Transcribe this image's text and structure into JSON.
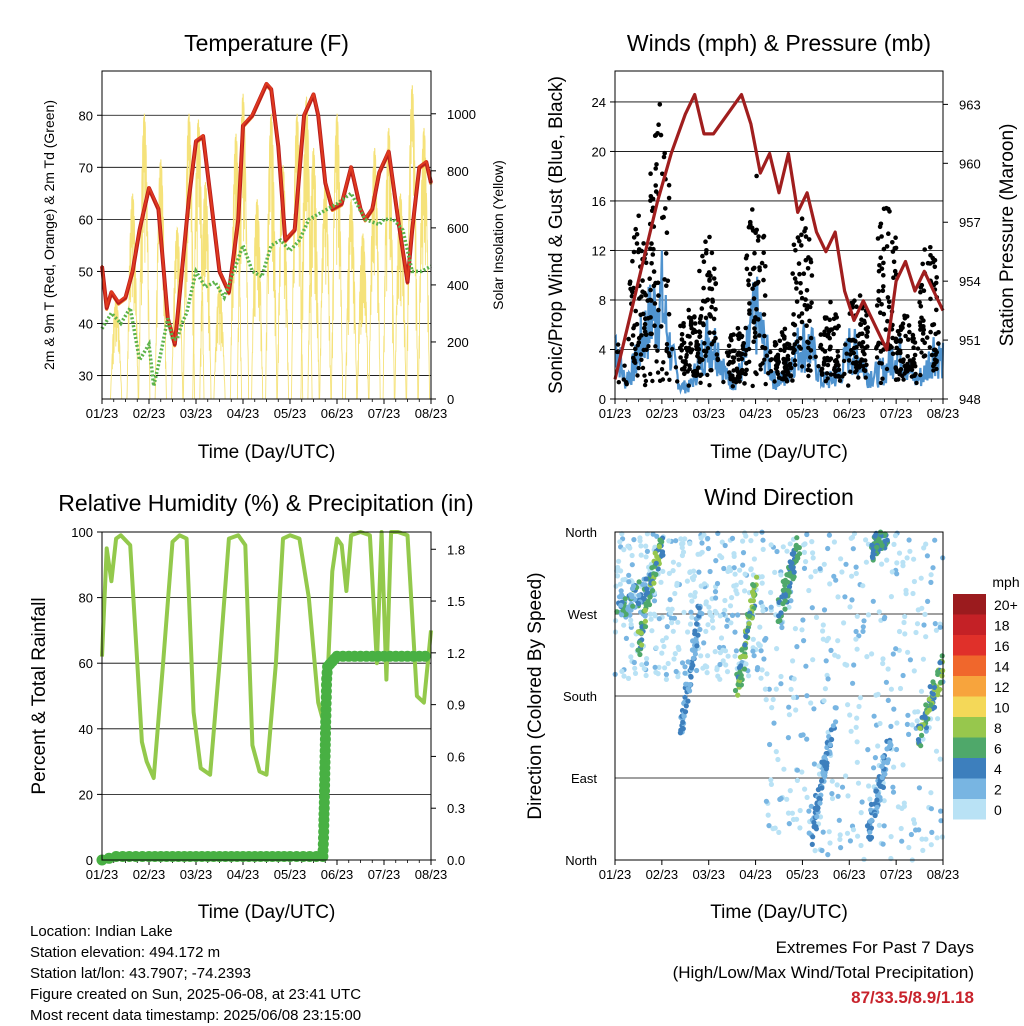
{
  "colors": {
    "temp_2m": "#e03a1e",
    "temp_9m": "#b81e1e",
    "temp_2m_alt": "#f28a2a",
    "dewpoint": "#5cb34a",
    "insolation": "#f5e27a",
    "gust": "#000000",
    "wind": "#4f93cf",
    "pressure": "#a01e1e",
    "rh": "#93c94c",
    "precip": "#48b043"
  },
  "footer": {
    "location": "Location: Indian Lake",
    "elevation": "Station elevation: 494.172 m",
    "latlon": "Station lat/lon: 43.7907; -74.2393",
    "created": "Figure created on Sun, 2025-06-08, at 23:41 UTC",
    "recent": "Most recent data timestamp: 2025/06/08 23:15:00"
  },
  "extremes": {
    "title": "Extremes For Past 7 Days",
    "subtitle": "(High/Low/Max Wind/Total Precipitation)",
    "values": "87/33.5/8.9/1.18"
  },
  "chart_data": [
    {
      "type": "line",
      "title": "Temperature (F)",
      "xlabel": "Time (Day/UTC)",
      "ylabel": "2m & 9m T (Red, Orange) & 2m Td (Green)",
      "y2label": "Solar Insolation (Yellow)",
      "x_ticks": [
        "01/23",
        "02/23",
        "03/23",
        "04/23",
        "05/23",
        "06/23",
        "07/23",
        "08/23"
      ],
      "ylim": [
        25.5,
        88.5
      ],
      "y_ticks": [
        30,
        40,
        50,
        60,
        70,
        80
      ],
      "y2lim": [
        0,
        1150
      ],
      "y2_ticks": [
        0,
        200,
        400,
        600,
        800,
        1000
      ],
      "grid": true,
      "series": [
        {
          "name": "2m T",
          "axis": "left",
          "color_key": "temp_2m",
          "x": [
            0,
            0.1,
            0.2,
            0.35,
            0.5,
            0.65,
            0.8,
            1.0,
            1.2,
            1.4,
            1.55,
            1.7,
            1.85,
            2.0,
            2.15,
            2.3,
            2.5,
            2.7,
            2.9,
            3.0,
            3.2,
            3.5,
            3.6,
            3.75,
            3.9,
            4.1,
            4.3,
            4.5,
            4.6,
            4.75,
            4.9,
            5.1,
            5.3,
            5.5,
            5.6,
            5.75,
            5.9,
            6.1,
            6.3,
            6.5,
            6.6,
            6.75,
            6.9,
            7.0
          ],
          "values": [
            51,
            43,
            46,
            44,
            45,
            50,
            58,
            66,
            62,
            41,
            36,
            50,
            64,
            75,
            76,
            65,
            50,
            46,
            60,
            78,
            80,
            86,
            85,
            74,
            56,
            58,
            80,
            84,
            80,
            67,
            62,
            63,
            70,
            62,
            60,
            62,
            69,
            73,
            60,
            48,
            58,
            70,
            71,
            67
          ]
        },
        {
          "name": "2m Td",
          "axis": "left",
          "color_key": "dewpoint",
          "x": [
            0,
            0.2,
            0.4,
            0.6,
            0.8,
            1.0,
            1.1,
            1.2,
            1.4,
            1.5,
            1.6,
            1.7,
            1.8,
            2.0,
            2.2,
            2.4,
            2.6,
            2.8,
            3.0,
            3.2,
            3.4,
            3.6,
            3.8,
            4.0,
            4.2,
            4.4,
            4.6,
            4.8,
            5.0,
            5.3,
            5.6,
            5.9,
            6.0,
            6.2,
            6.4,
            6.6,
            6.8,
            7.0
          ],
          "values": [
            39,
            42,
            40,
            43,
            33,
            36,
            28,
            32,
            41,
            37,
            37,
            40,
            42,
            50,
            47,
            48,
            45,
            50,
            55,
            50,
            49,
            55,
            56,
            54,
            56,
            60,
            61,
            62,
            63,
            65,
            60,
            59,
            60,
            60,
            58,
            50,
            50,
            51
          ]
        }
      ],
      "insolation_peaks": [
        0.3,
        0.65,
        0.9,
        1.25,
        1.6,
        1.85,
        2.05,
        2.2,
        2.5,
        2.85,
        3.0,
        3.3,
        3.6,
        3.85,
        4.15,
        4.35,
        4.5,
        4.75,
        5.0,
        5.3,
        5.55,
        5.8,
        6.1,
        6.35,
        6.6,
        6.85
      ],
      "insolation_values": [
        350,
        720,
        1000,
        840,
        600,
        1000,
        980,
        760,
        400,
        930,
        1070,
        700,
        1000,
        820,
        1000,
        1060,
        880,
        760,
        1000,
        700,
        580,
        880,
        950,
        720,
        1100,
        950
      ]
    },
    {
      "type": "line",
      "title": "Winds (mph) & Pressure (mb)",
      "xlabel": "Time (Day/UTC)",
      "ylabel": "Sonic/Prop Wind & Gust (Blue, Black)",
      "y2label": "Station Pressure (Maroon)",
      "x_ticks": [
        "01/23",
        "02/23",
        "03/23",
        "04/23",
        "05/23",
        "06/23",
        "07/23",
        "08/23"
      ],
      "ylim": [
        0,
        26.5
      ],
      "y_ticks": [
        0,
        4,
        8,
        12,
        16,
        20,
        24
      ],
      "y2lim": [
        948,
        964.7
      ],
      "y2_ticks": [
        948,
        951,
        954,
        957,
        960,
        963
      ],
      "grid": true,
      "series": [
        {
          "name": "Pressure",
          "axis": "right",
          "color_key": "pressure",
          "x": [
            0,
            0.3,
            0.6,
            0.9,
            1.2,
            1.5,
            1.7,
            1.9,
            2.1,
            2.4,
            2.7,
            2.9,
            3.1,
            3.3,
            3.5,
            3.7,
            3.9,
            4.1,
            4.3,
            4.5,
            4.7,
            4.9,
            5.1,
            5.3,
            5.6,
            5.8,
            6.0,
            6.2,
            6.4,
            6.6,
            6.8,
            7.0
          ],
          "values": [
            949,
            952,
            955,
            958,
            960.5,
            962.5,
            963.5,
            961.5,
            961.5,
            962.5,
            963.5,
            962,
            959.5,
            960.5,
            958.5,
            960.5,
            957.5,
            958.5,
            956.5,
            955.5,
            956.5,
            953.5,
            952,
            953,
            951.5,
            950.5,
            954,
            955,
            953.5,
            954.5,
            953.5,
            952.5
          ]
        },
        {
          "name": "Wind",
          "axis": "left",
          "color_key": "wind",
          "x": [
            0,
            0.2,
            0.4,
            0.6,
            0.8,
            1.0,
            1.2,
            1.4,
            1.6,
            1.8,
            2.0,
            2.2,
            2.4,
            2.6,
            2.8,
            3.0,
            3.2,
            3.4,
            3.6,
            3.8,
            4.0,
            4.2,
            4.4,
            4.6,
            4.8,
            5.0,
            5.2,
            5.4,
            5.6,
            5.8,
            6.0,
            6.2,
            6.4,
            6.6,
            6.8,
            7.0
          ],
          "values": [
            5,
            1.5,
            2.5,
            5,
            7,
            8,
            3.5,
            1,
            1,
            3,
            5,
            4,
            1.5,
            1.5,
            3.5,
            7,
            4,
            1.5,
            1.5,
            3.5,
            4.5,
            4,
            1.5,
            1.5,
            2,
            4,
            3.5,
            2,
            2,
            2.5,
            4,
            3,
            1.5,
            2,
            4,
            3
          ]
        }
      ],
      "gust_centers": [
        0.5,
        0.95,
        1.6,
        2.0,
        2.6,
        3.0,
        3.6,
        4.0,
        4.6,
        5.2,
        5.8,
        6.2,
        6.7
      ],
      "gust_peaks": [
        15,
        24,
        8,
        14,
        6,
        19,
        6,
        16,
        8,
        10,
        17,
        7,
        14
      ]
    },
    {
      "type": "line",
      "title": "Relative Humidity (%) & Precipitation (in)",
      "xlabel": "Time (Day/UTC)",
      "ylabel": "Percent & Total Rainfall",
      "x_ticks": [
        "01/23",
        "02/23",
        "03/23",
        "04/23",
        "05/23",
        "06/23",
        "07/23",
        "08/23"
      ],
      "ylim": [
        0,
        100
      ],
      "y_ticks": [
        0,
        20,
        40,
        60,
        80,
        100
      ],
      "y2lim": [
        0,
        1.9
      ],
      "y2_ticks": [
        "0.0",
        "0.3",
        "0.6",
        "0.9",
        "1.2",
        "1.5",
        "1.8"
      ],
      "grid": true,
      "series": [
        {
          "name": "RH",
          "axis": "left",
          "color_key": "rh",
          "x": [
            0,
            0.1,
            0.2,
            0.3,
            0.4,
            0.6,
            0.75,
            0.85,
            0.95,
            1.1,
            1.3,
            1.5,
            1.65,
            1.8,
            1.95,
            2.1,
            2.3,
            2.5,
            2.7,
            2.9,
            3.05,
            3.2,
            3.35,
            3.5,
            3.7,
            3.85,
            4.0,
            4.2,
            4.4,
            4.6,
            4.75,
            4.9,
            5.0,
            5.1,
            5.2,
            5.3,
            5.5,
            5.7,
            5.85,
            5.95,
            6.05,
            6.15,
            6.3,
            6.5,
            6.7,
            6.85,
            7.0
          ],
          "values": [
            62,
            95,
            85,
            98,
            99,
            96,
            60,
            36,
            30,
            25,
            60,
            97,
            99,
            98,
            45,
            28,
            26,
            60,
            98,
            99,
            96,
            35,
            27,
            26,
            60,
            98,
            99,
            98,
            80,
            48,
            40,
            88,
            98,
            96,
            82,
            99,
            100,
            99,
            60,
            100,
            55,
            100,
            100,
            99,
            50,
            48,
            70
          ]
        },
        {
          "name": "Precip",
          "axis": "right",
          "color_key": "precip",
          "x": [
            0,
            0.3,
            1.0,
            2.0,
            3.0,
            4.0,
            4.7,
            4.72,
            4.74,
            4.76,
            4.78,
            4.8,
            4.9,
            5.0,
            5.5,
            6.0,
            6.5,
            7.0
          ],
          "values": [
            0.0,
            0.02,
            0.02,
            0.02,
            0.02,
            0.02,
            0.02,
            0.2,
            0.5,
            0.8,
            1.05,
            1.12,
            1.15,
            1.18,
            1.18,
            1.18,
            1.18,
            1.18
          ]
        }
      ]
    },
    {
      "type": "scatter",
      "title": "Wind Direction",
      "xlabel": "Time (Day/UTC)",
      "ylabel": "Direction (Colored By Speed)",
      "x_ticks": [
        "01/23",
        "02/23",
        "03/23",
        "04/23",
        "05/23",
        "06/23",
        "07/23",
        "08/23"
      ],
      "y_ticks": [
        "North",
        "East",
        "South",
        "West",
        "North"
      ],
      "grid": true,
      "legend_title": "mph",
      "legend_labels": [
        "20+",
        "18",
        "16",
        "14",
        "12",
        "10",
        "8",
        "6",
        "4",
        "2",
        "0"
      ],
      "legend_colors": [
        "#9b1b1e",
        "#c42126",
        "#e0302a",
        "#f0672c",
        "#f7a43d",
        "#f4d858",
        "#97c74d",
        "#4fa86a",
        "#3d7fbd",
        "#78b5e2",
        "#b9e2f5"
      ],
      "legend_placement": "right"
    }
  ]
}
